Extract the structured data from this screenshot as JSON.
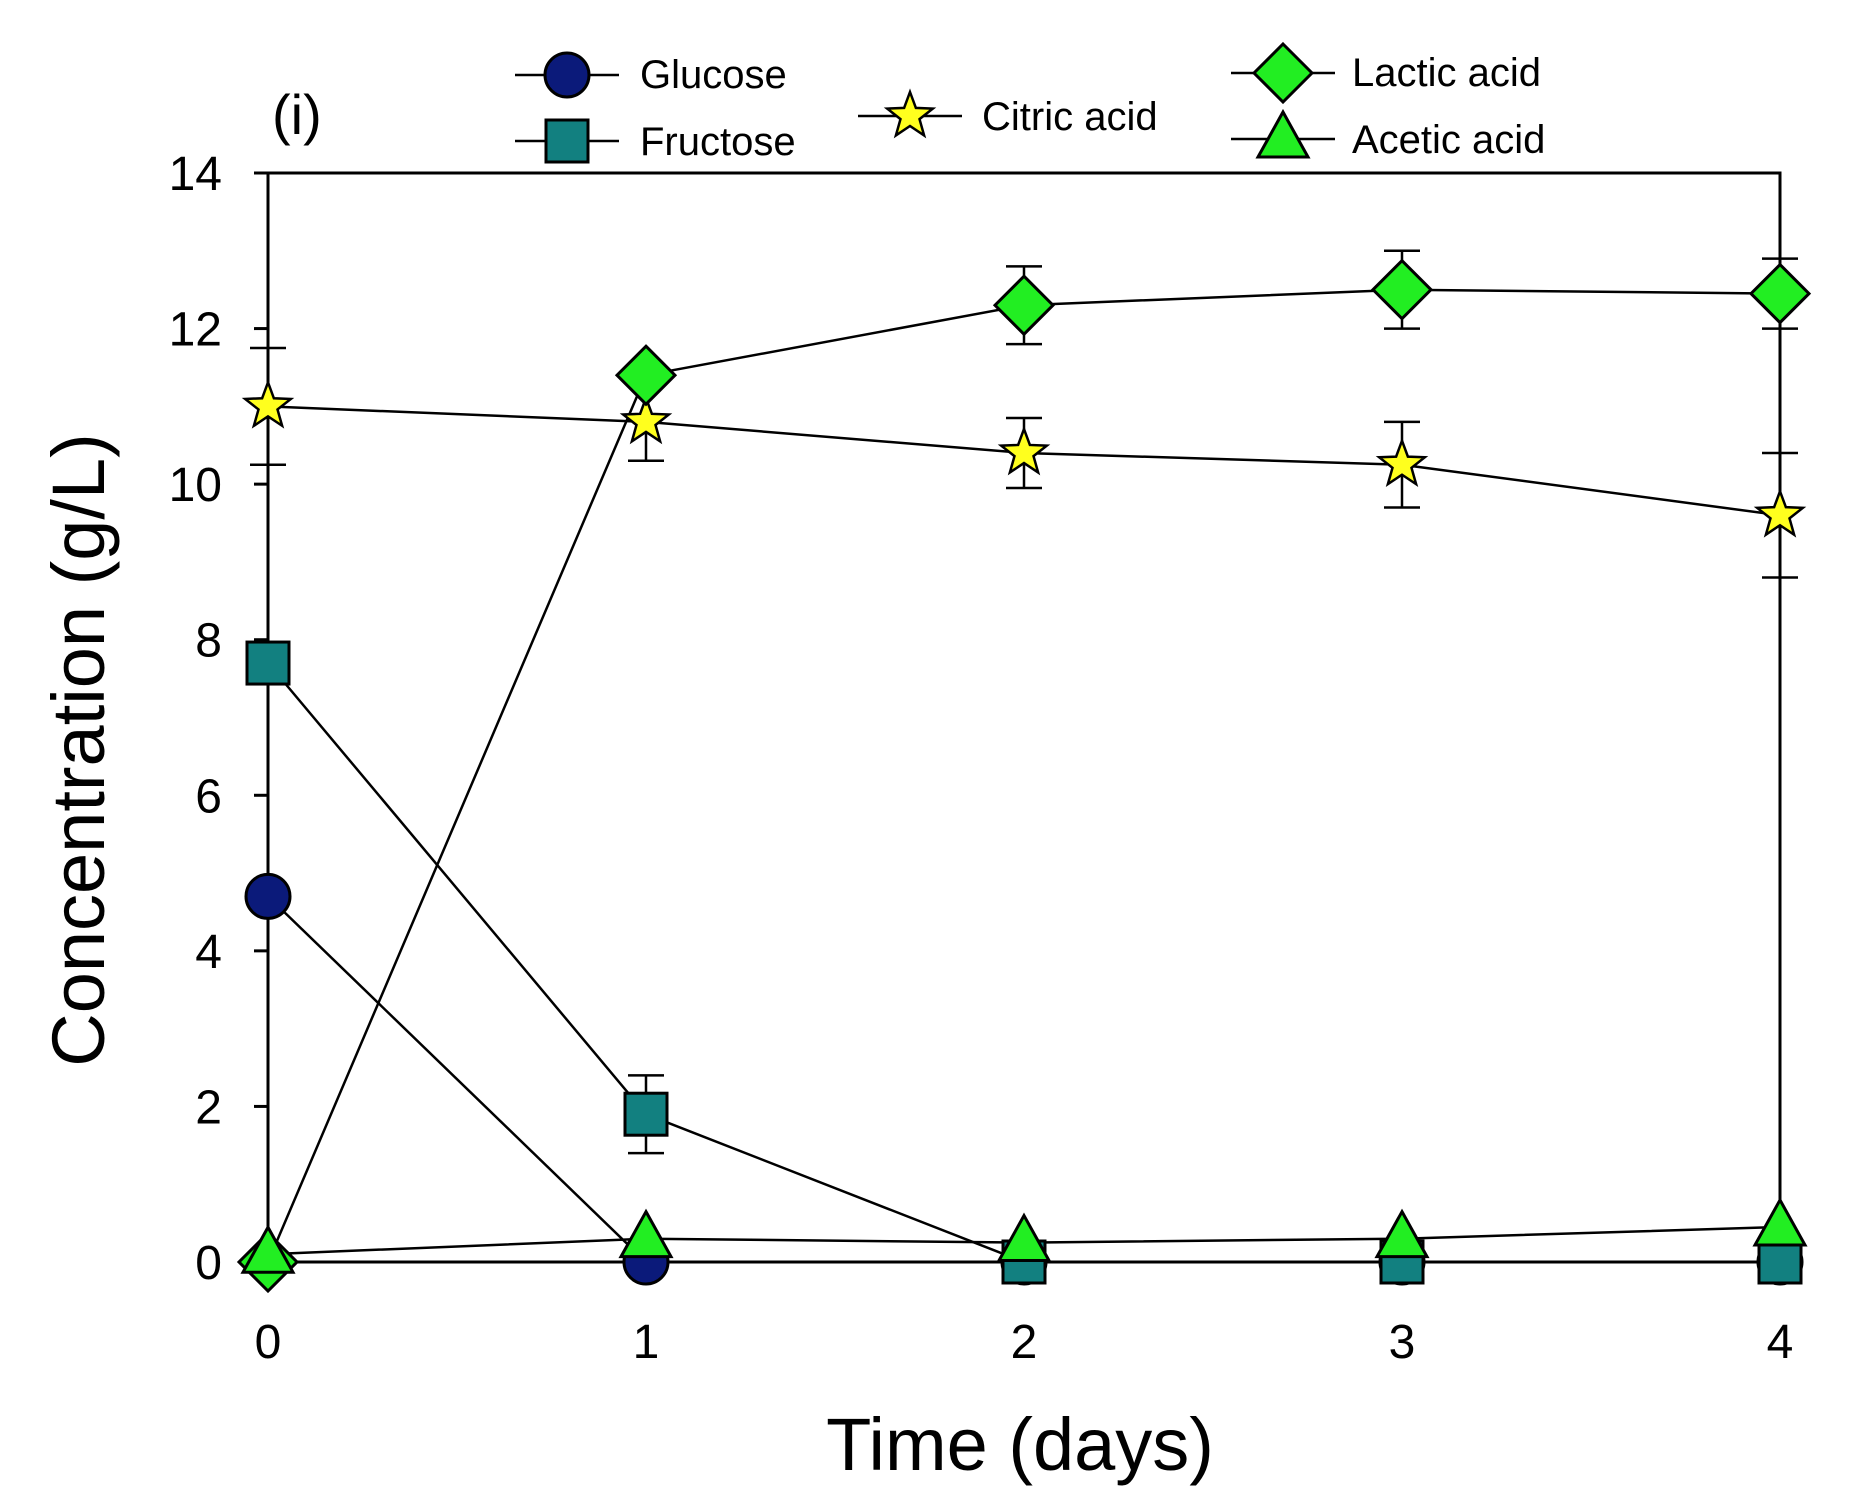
{
  "chart_data": {
    "type": "line",
    "panel_label": "(i)",
    "xlabel": "Time (days)",
    "ylabel": "Concentration (g/L)",
    "xlim": [
      0,
      4
    ],
    "ylim": [
      0,
      14
    ],
    "x": [
      0,
      1,
      2,
      3,
      4
    ],
    "x_tick_labels": [
      "0",
      "1",
      "2",
      "3",
      "4"
    ],
    "y_tick_values": [
      0,
      2,
      4,
      6,
      8,
      10,
      12,
      14
    ],
    "y_tick_labels": [
      "0",
      "2",
      "4",
      "6",
      "8",
      "10",
      "12",
      "14"
    ],
    "grid": false,
    "series": [
      {
        "name": "Glucose",
        "marker": "circle",
        "color": "#0b1a7a",
        "values": [
          4.7,
          0.0,
          0.0,
          0.0,
          0.0
        ],
        "errors": [
          0,
          0,
          0,
          0,
          0
        ]
      },
      {
        "name": "Fructose",
        "marker": "square",
        "color": "#128080",
        "values": [
          7.7,
          1.9,
          0.0,
          0.0,
          0.0
        ],
        "errors": [
          0,
          0.5,
          0,
          0,
          0
        ]
      },
      {
        "name": "Citric acid",
        "marker": "star",
        "color": "#ffff1e",
        "values": [
          11.0,
          10.8,
          10.4,
          10.25,
          9.6
        ],
        "errors": [
          0.75,
          0.5,
          0.45,
          0.55,
          0.8
        ]
      },
      {
        "name": "Lactic acid",
        "marker": "diamond",
        "color": "#22ee22",
        "values": [
          0.0,
          11.4,
          12.3,
          12.5,
          12.45
        ],
        "errors": [
          0,
          0,
          0.5,
          0.5,
          0.45
        ]
      },
      {
        "name": "Acetic acid",
        "marker": "triangle",
        "color": "#22ee22",
        "values": [
          0.1,
          0.3,
          0.25,
          0.3,
          0.45
        ],
        "errors": [
          0,
          0,
          0,
          0,
          0
        ]
      }
    ]
  }
}
